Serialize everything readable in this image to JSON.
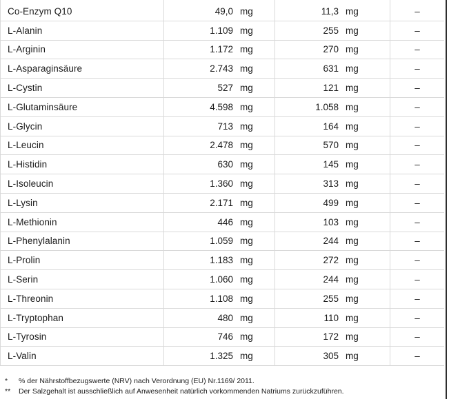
{
  "table": {
    "unit": "mg",
    "rows": [
      {
        "name": "Co-Enzym Q10",
        "per100": "49,0",
        "portion": "11,3",
        "nrv": "–"
      },
      {
        "name": "L-Alanin",
        "per100": "1.109",
        "portion": "255",
        "nrv": "–"
      },
      {
        "name": "L-Arginin",
        "per100": "1.172",
        "portion": "270",
        "nrv": "–"
      },
      {
        "name": "L-Asparaginsäure",
        "per100": "2.743",
        "portion": "631",
        "nrv": "–"
      },
      {
        "name": "L-Cystin",
        "per100": "527",
        "portion": "121",
        "nrv": "–"
      },
      {
        "name": "L-Glutaminsäure",
        "per100": "4.598",
        "portion": "1.058",
        "nrv": "–"
      },
      {
        "name": "L-Glycin",
        "per100": "713",
        "portion": "164",
        "nrv": "–"
      },
      {
        "name": "L-Leucin",
        "per100": "2.478",
        "portion": "570",
        "nrv": "–"
      },
      {
        "name": "L-Histidin",
        "per100": "630",
        "portion": "145",
        "nrv": "–"
      },
      {
        "name": "L-Isoleucin",
        "per100": "1.360",
        "portion": "313",
        "nrv": "–"
      },
      {
        "name": "L-Lysin",
        "per100": "2.171",
        "portion": "499",
        "nrv": "–"
      },
      {
        "name": "L-Methionin",
        "per100": "446",
        "portion": "103",
        "nrv": "–"
      },
      {
        "name": "L-Phenylalanin",
        "per100": "1.059",
        "portion": "244",
        "nrv": "–"
      },
      {
        "name": "L-Prolin",
        "per100": "1.183",
        "portion": "272",
        "nrv": "–"
      },
      {
        "name": "L-Serin",
        "per100": "1.060",
        "portion": "244",
        "nrv": "–"
      },
      {
        "name": "L-Threonin",
        "per100": "1.108",
        "portion": "255",
        "nrv": "–"
      },
      {
        "name": "L-Tryptophan",
        "per100": "480",
        "portion": "110",
        "nrv": "–"
      },
      {
        "name": "L-Tyrosin",
        "per100": "746",
        "portion": "172",
        "nrv": "–"
      },
      {
        "name": "L-Valin",
        "per100": "1.325",
        "portion": "305",
        "nrv": "–"
      }
    ]
  },
  "footnotes": [
    {
      "marker": "*",
      "text": "% der Nährstoffbezugswerte (NRV) nach Verordnung (EU) Nr.1169/ 2011."
    },
    {
      "marker": "**",
      "text": "Der Salzgehalt ist ausschließlich auf Anwesenheit natürlich vorkommenden Natriums zurückzuführen."
    }
  ],
  "colors": {
    "grid_line": "#d9d9d9",
    "text": "#1a1a1a",
    "right_edge_line": "#2e2e2e",
    "background": "#ffffff"
  }
}
